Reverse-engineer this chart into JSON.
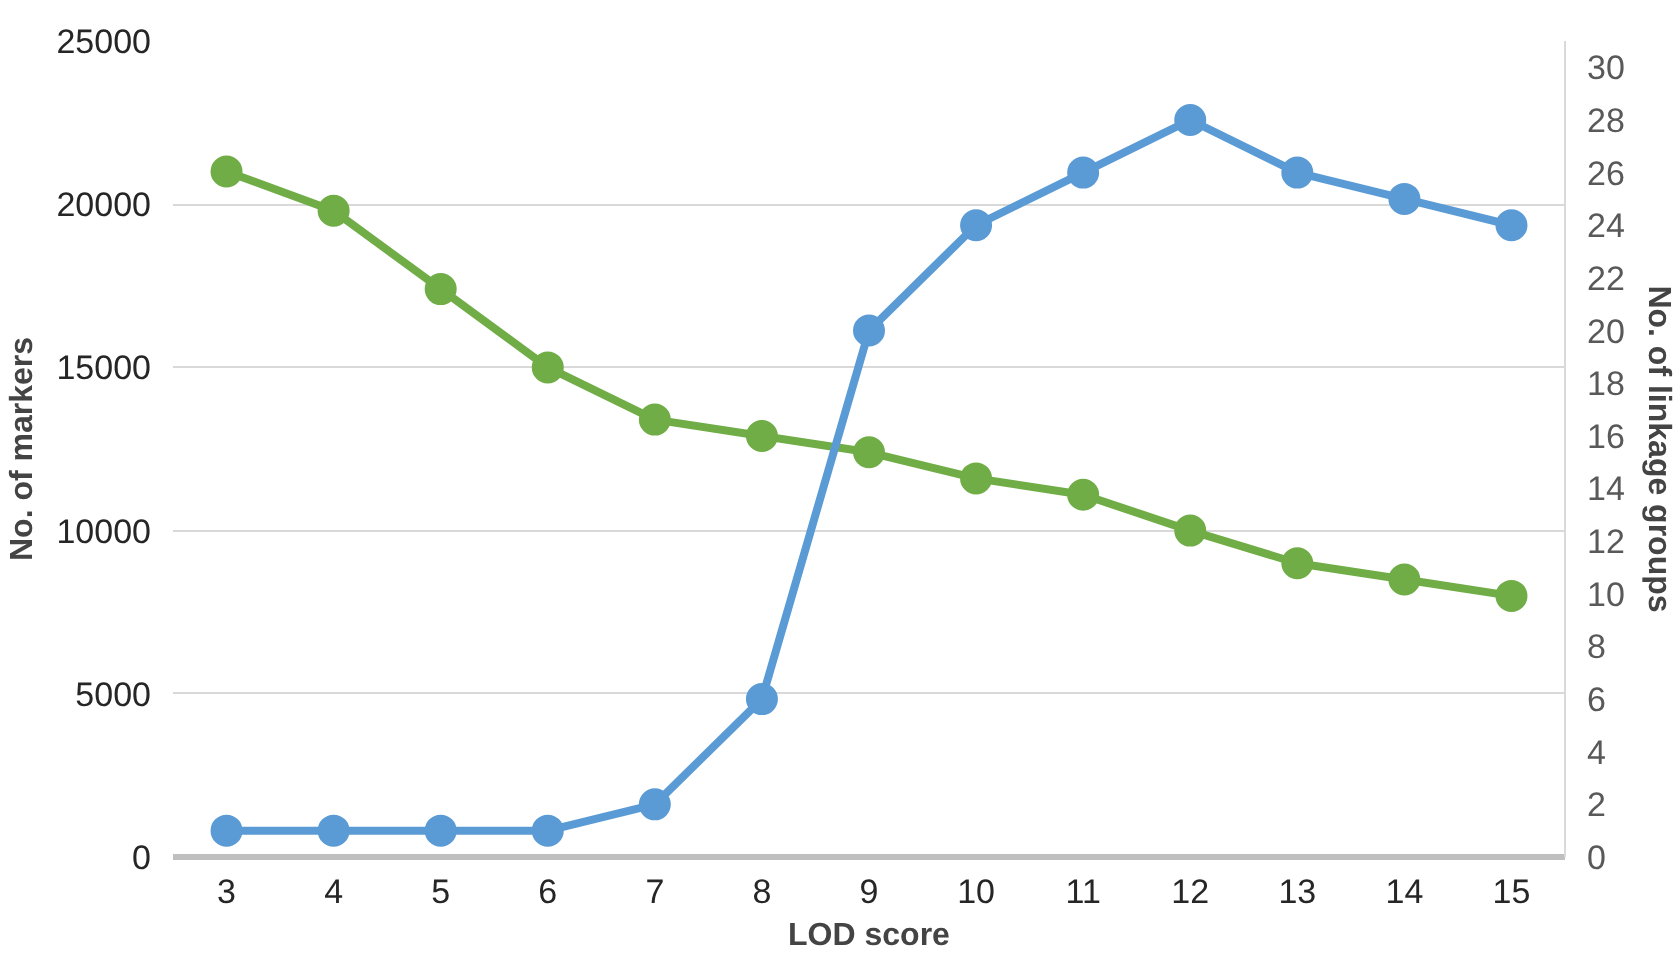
{
  "chart_data": {
    "type": "line",
    "xlabel": "LOD score",
    "ylabel": "No. of markers",
    "y2label": "No. of linkage groups",
    "categories": [
      "3",
      "4",
      "5",
      "6",
      "7",
      "8",
      "9",
      "10",
      "11",
      "12",
      "13",
      "14",
      "15"
    ],
    "series": [
      {
        "color": "#70ad47",
        "values": [
          21000,
          19800,
          17400,
          15000,
          13400,
          12900,
          12400,
          11600,
          11100,
          10000,
          9000,
          8500,
          8000
        ]
      },
      {
        "color": "#5b9bd5",
        "axis": "y2",
        "values": [
          1,
          1,
          1,
          1,
          2,
          6,
          20,
          24,
          26,
          28,
          26,
          25,
          24
        ]
      }
    ],
    "ylim": [
      0,
      25000
    ],
    "yticks": [
      0,
      5000,
      10000,
      15000,
      20000,
      25000
    ],
    "y2lim": [
      0,
      31
    ],
    "y2ticks": [
      0,
      2,
      4,
      6,
      8,
      10,
      12,
      14,
      16,
      18,
      20,
      22,
      24,
      26,
      28,
      30
    ],
    "grid": "y",
    "marker": "circle",
    "line_style": "solid"
  }
}
